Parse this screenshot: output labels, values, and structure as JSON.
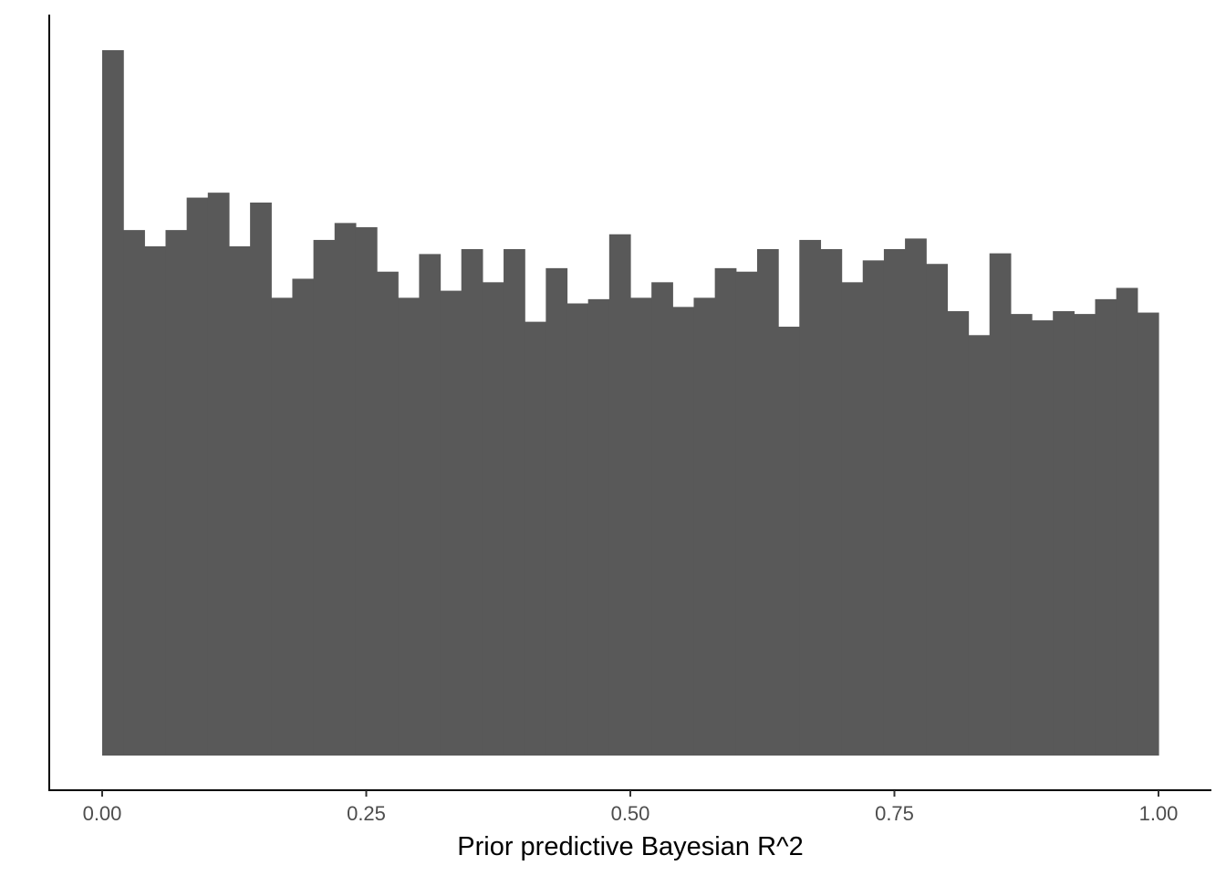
{
  "chart_data": {
    "type": "bar",
    "subtype": "histogram",
    "title": "",
    "xlabel": "Prior predictive Bayesian R^2",
    "ylabel": "",
    "xlim": [
      0,
      1
    ],
    "ylim": [
      0,
      1
    ],
    "y_units": "relative height (fraction of tallest bin)",
    "grid": false,
    "legend": "none",
    "bar_color": "#595959",
    "axis_color": "#000000",
    "tick_label_color": "#4d4d4d",
    "x_ticks": [
      {
        "value": 0.0,
        "label": "0.00"
      },
      {
        "value": 0.25,
        "label": "0.25"
      },
      {
        "value": 0.5,
        "label": "0.50"
      },
      {
        "value": 0.75,
        "label": "0.75"
      },
      {
        "value": 1.0,
        "label": "1.00"
      }
    ],
    "bin_edges_start": 0.0,
    "bin_width": 0.0204,
    "values": [
      1.0,
      0.745,
      0.722,
      0.745,
      0.791,
      0.798,
      0.722,
      0.784,
      0.649,
      0.676,
      0.731,
      0.755,
      0.749,
      0.686,
      0.649,
      0.711,
      0.659,
      0.718,
      0.671,
      0.718,
      0.615,
      0.691,
      0.641,
      0.647,
      0.739,
      0.649,
      0.671,
      0.636,
      0.649,
      0.691,
      0.686,
      0.718,
      0.608,
      0.731,
      0.718,
      0.671,
      0.702,
      0.718,
      0.733,
      0.697,
      0.63,
      0.596,
      0.712,
      0.626,
      0.617,
      0.63,
      0.626,
      0.647,
      0.663,
      0.628
    ]
  }
}
